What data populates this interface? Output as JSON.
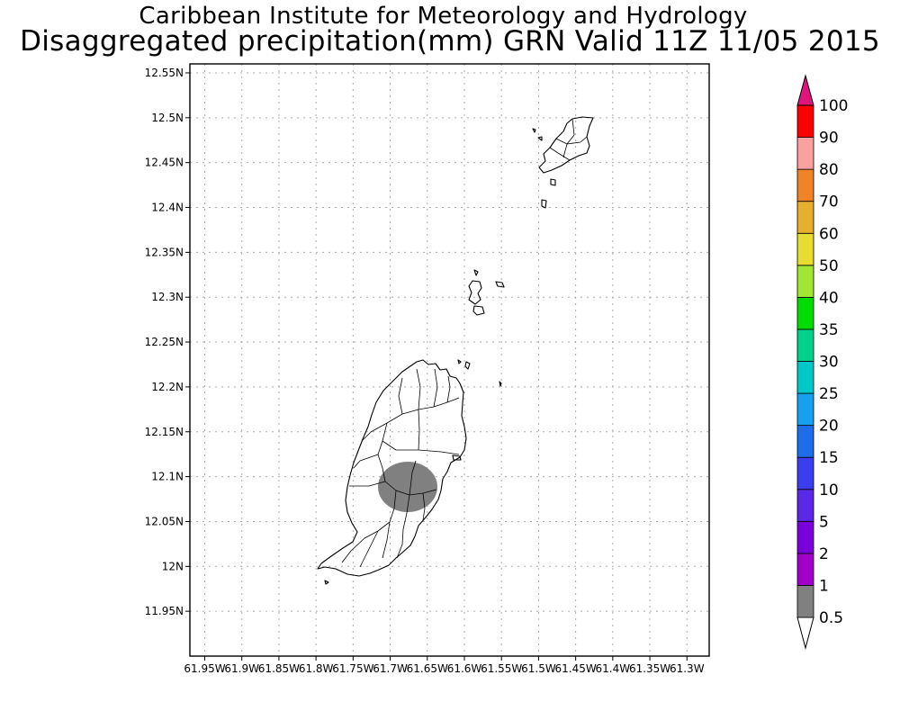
{
  "header": {
    "title": "Caribbean Institute for Meteorology and Hydrology",
    "subtitle": "Disaggregated precipitation(mm) GRN Valid 11Z 11/05 2015"
  },
  "map": {
    "lon_range": [
      -61.97,
      -61.27
    ],
    "lat_range": [
      11.9,
      12.56
    ],
    "lat_ticks": [
      {
        "value": 12.55,
        "label": "12.55N"
      },
      {
        "value": 12.5,
        "label": "12.5N"
      },
      {
        "value": 12.45,
        "label": "12.45N"
      },
      {
        "value": 12.4,
        "label": "12.4N"
      },
      {
        "value": 12.35,
        "label": "12.35N"
      },
      {
        "value": 12.3,
        "label": "12.3N"
      },
      {
        "value": 12.25,
        "label": "12.25N"
      },
      {
        "value": 12.2,
        "label": "12.2N"
      },
      {
        "value": 12.15,
        "label": "12.15N"
      },
      {
        "value": 12.1,
        "label": "12.1N"
      },
      {
        "value": 12.05,
        "label": "12.05N"
      },
      {
        "value": 12.0,
        "label": "12N"
      },
      {
        "value": 11.95,
        "label": "11.95N"
      }
    ],
    "lon_ticks": [
      {
        "value": -61.95,
        "label": "61.95W"
      },
      {
        "value": -61.9,
        "label": "61.9W"
      },
      {
        "value": -61.85,
        "label": "61.85W"
      },
      {
        "value": -61.8,
        "label": "61.8W"
      },
      {
        "value": -61.75,
        "label": "61.75W"
      },
      {
        "value": -61.7,
        "label": "61.7W"
      },
      {
        "value": -61.65,
        "label": "61.65W"
      },
      {
        "value": -61.6,
        "label": "61.6W"
      },
      {
        "value": -61.55,
        "label": "61.55W"
      },
      {
        "value": -61.5,
        "label": "61.5W"
      },
      {
        "value": -61.45,
        "label": "61.45W"
      },
      {
        "value": -61.4,
        "label": "61.4W"
      },
      {
        "value": -61.35,
        "label": "61.35W"
      },
      {
        "value": -61.3,
        "label": "61.3W"
      }
    ],
    "grid": true,
    "precip_area": {
      "center_lon": -61.676,
      "center_lat": 12.094,
      "range_mm": "0.5-1",
      "color": "#808080"
    }
  },
  "colorbar": {
    "levels": [
      {
        "label": "0.5",
        "color": "#808080"
      },
      {
        "label": "1",
        "color": "#a000c8"
      },
      {
        "label": "2",
        "color": "#7a00dc"
      },
      {
        "label": "5",
        "color": "#5a28e6"
      },
      {
        "label": "10",
        "color": "#3c3cf0"
      },
      {
        "label": "15",
        "color": "#1e6eeb"
      },
      {
        "label": "20",
        "color": "#16a0f0"
      },
      {
        "label": "25",
        "color": "#00c8c8"
      },
      {
        "label": "30",
        "color": "#00d28c"
      },
      {
        "label": "35",
        "color": "#00dc00"
      },
      {
        "label": "40",
        "color": "#a0e632"
      },
      {
        "label": "50",
        "color": "#e6dc32"
      },
      {
        "label": "60",
        "color": "#e6af2d"
      },
      {
        "label": "70",
        "color": "#f08228"
      },
      {
        "label": "80",
        "color": "#faa0a0"
      },
      {
        "label": "90",
        "color": "#fa0000"
      },
      {
        "label": "100",
        "color": "#f03c3c"
      }
    ],
    "low_end_color": "#ffffff",
    "high_end_color": "#e0147a"
  }
}
